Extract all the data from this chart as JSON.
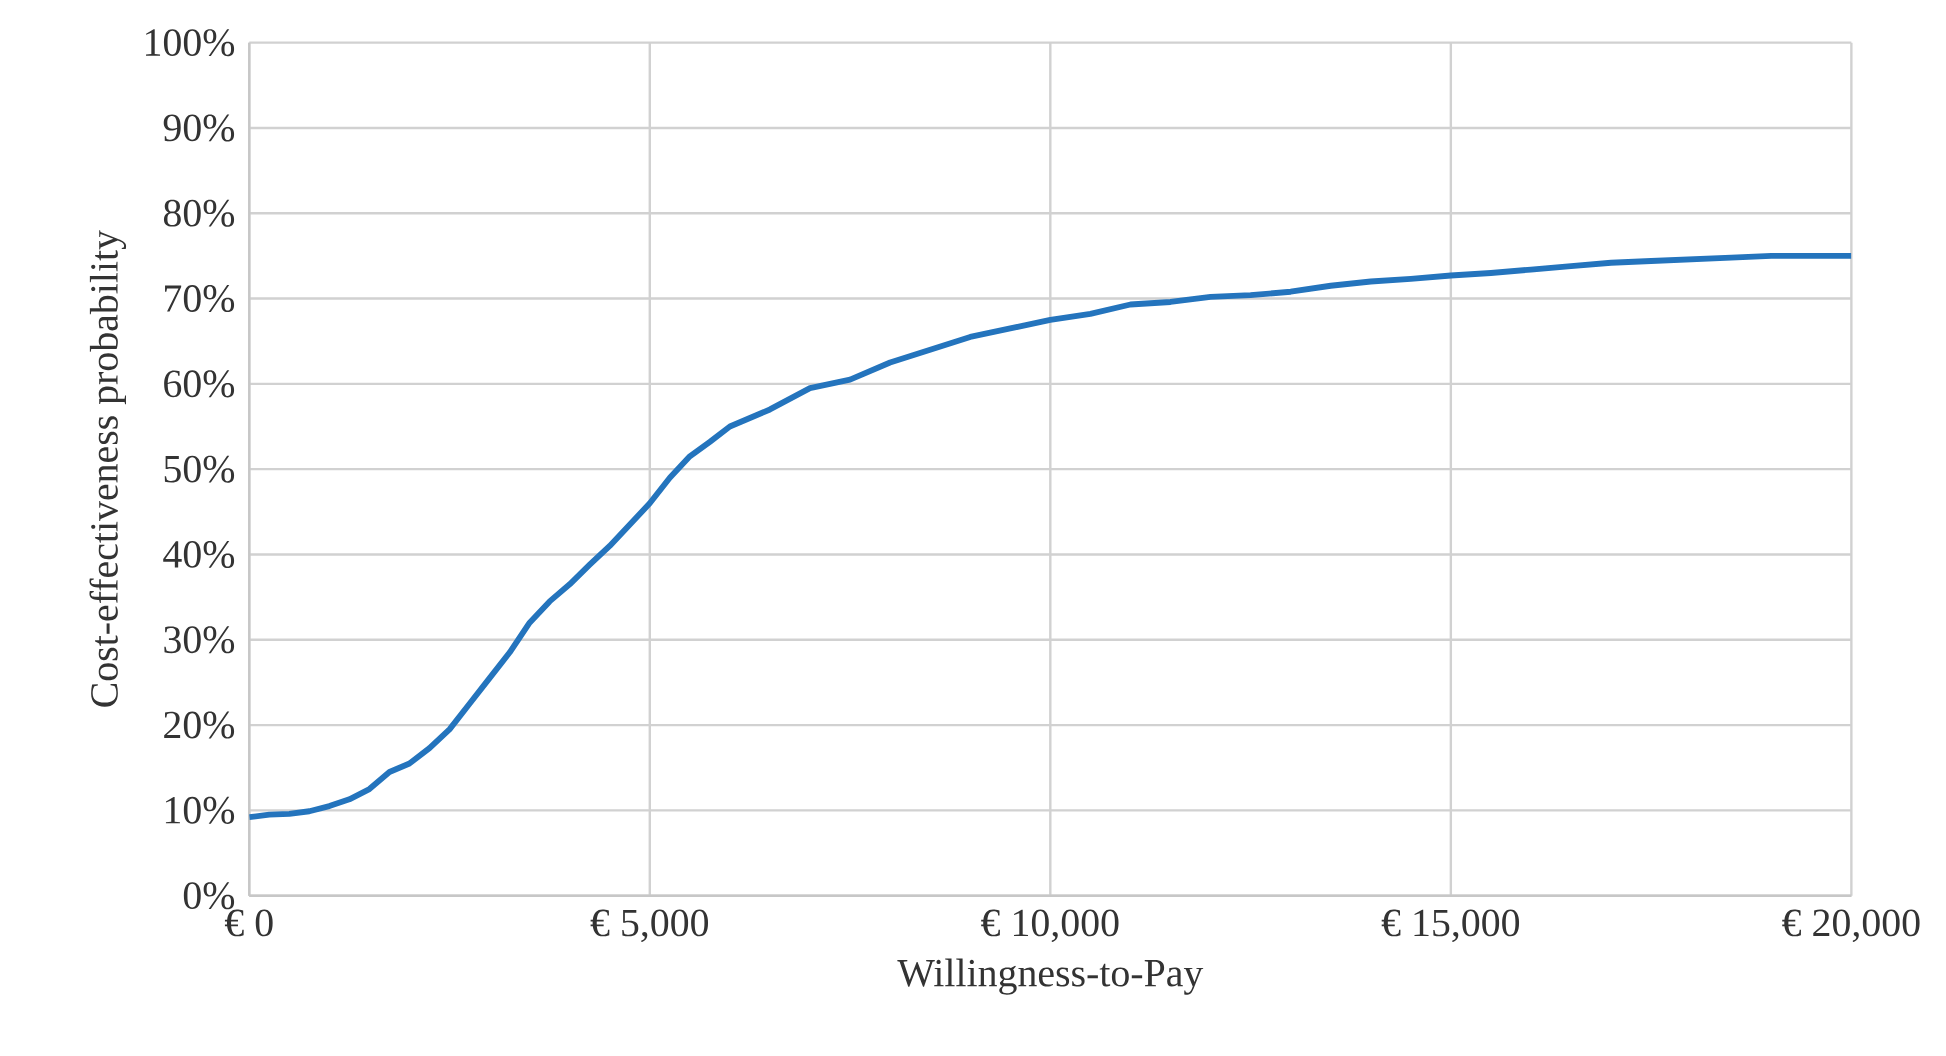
{
  "chart_data": {
    "type": "line",
    "xlabel": "Willingness-to-Pay",
    "ylabel": "Cost-effectiveness probability",
    "x": [
      0,
      250,
      500,
      750,
      1000,
      1250,
      1500,
      1750,
      2000,
      2250,
      2500,
      2750,
      3000,
      3250,
      3500,
      3750,
      4000,
      4250,
      4500,
      4750,
      5000,
      5250,
      5500,
      5750,
      6000,
      6500,
      7000,
      7500,
      8000,
      8500,
      9000,
      9500,
      10000,
      10500,
      11000,
      11500,
      12000,
      12500,
      13000,
      13500,
      14000,
      14500,
      15000,
      15500,
      16000,
      16500,
      17000,
      17500,
      18000,
      18500,
      19000,
      19500,
      20000
    ],
    "series": [
      {
        "color": "#2474bd",
        "values": [
          9.2,
          9.5,
          9.6,
          9.9,
          10.5,
          11.3,
          12.5,
          14.5,
          15.5,
          17.3,
          19.5,
          22.5,
          25.5,
          28.5,
          32,
          34.5,
          36.5,
          38.8,
          41,
          43.5,
          46,
          49,
          51.5,
          53.2,
          55,
          57,
          59.5,
          60.5,
          62.5,
          64,
          65.5,
          66.5,
          67.5,
          68.2,
          69.3,
          69.6,
          70.2,
          70.4,
          70.8,
          71.5,
          72,
          72.3,
          72.7,
          73,
          73.4,
          73.8,
          74.2,
          74.4,
          74.6,
          74.8,
          75,
          75,
          75
        ]
      }
    ],
    "xlim": [
      0,
      20000
    ],
    "xticks": [
      {
        "value": 0,
        "label": "€ 0"
      },
      {
        "value": 5000,
        "label": "€ 5,000"
      },
      {
        "value": 10000,
        "label": "€ 10,000"
      },
      {
        "value": 15000,
        "label": "€ 15,000"
      },
      {
        "value": 20000,
        "label": "€ 20,000"
      }
    ],
    "ylim": [
      0,
      100
    ],
    "yticks": [
      {
        "value": 0,
        "label": "0%"
      },
      {
        "value": 10,
        "label": "10%"
      },
      {
        "value": 20,
        "label": "20%"
      },
      {
        "value": 30,
        "label": "30%"
      },
      {
        "value": 40,
        "label": "40%"
      },
      {
        "value": 50,
        "label": "50%"
      },
      {
        "value": 60,
        "label": "60%"
      },
      {
        "value": 70,
        "label": "70%"
      },
      {
        "value": 80,
        "label": "80%"
      },
      {
        "value": 90,
        "label": "90%"
      },
      {
        "value": 100,
        "label": "100%"
      }
    ],
    "grid": true,
    "legend": false,
    "marker": "none",
    "line_style": "solid"
  }
}
